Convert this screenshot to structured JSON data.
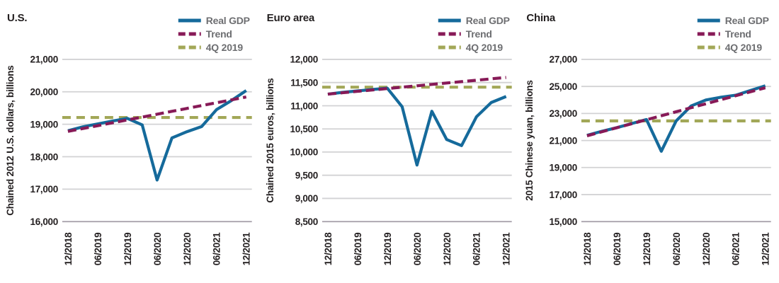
{
  "colors": {
    "real_gdp": "#156a9b",
    "trend": "#871a57",
    "q4_2019": "#a2a757",
    "legend_text": "#6d6e71",
    "title_text": "#231f20",
    "axis_text": "#231f20",
    "gridline": "#d2d2d4",
    "baseline": "#a49ea8",
    "background": "#ffffff"
  },
  "legend": {
    "items": [
      {
        "label": "Real GDP",
        "series_key": "real_gdp",
        "line_style": "solid"
      },
      {
        "label": "Trend",
        "series_key": "trend",
        "line_style": "dashed"
      },
      {
        "label": "4Q 2019",
        "series_key": "q4_2019",
        "line_style": "dashed"
      }
    ],
    "position": "top-right"
  },
  "chart_data": [
    {
      "type": "line",
      "title": "U.S.",
      "ylabel": "Chained 2012 U.S. dollars, billions",
      "x": [
        "12/2018",
        "03/2019",
        "06/2019",
        "09/2019",
        "12/2019",
        "03/2020",
        "06/2020",
        "09/2020",
        "12/2020",
        "03/2021",
        "06/2021",
        "09/2021",
        "12/2021"
      ],
      "x_tick_labels": [
        "12/2018",
        "06/2019",
        "12/2019",
        "06/2020",
        "12/2020",
        "06/2021",
        "12/2021"
      ],
      "y_ticks": [
        21000,
        20000,
        19000,
        18000,
        17000,
        16000
      ],
      "ylim": [
        16000,
        21000
      ],
      "grid": true,
      "series": [
        {
          "name": "Real GDP",
          "values": [
            18800,
            18920,
            19010,
            19100,
            19180,
            18980,
            17280,
            18580,
            18770,
            18930,
            19450,
            19730,
            20040
          ]
        },
        {
          "name": "Trend",
          "values": [
            18780,
            18868,
            18957,
            19045,
            19133,
            19222,
            19310,
            19398,
            19487,
            19575,
            19663,
            19752,
            19840
          ]
        },
        {
          "name": "4Q 2019",
          "values": [
            19210,
            19210,
            19210,
            19210,
            19210,
            19210,
            19210,
            19210,
            19210,
            19210,
            19210,
            19210,
            19210
          ]
        }
      ]
    },
    {
      "type": "line",
      "title": "Euro area",
      "ylabel": "Chained 2015 euros, billions",
      "x": [
        "12/2018",
        "03/2019",
        "06/2019",
        "09/2019",
        "12/2019",
        "03/2020",
        "06/2020",
        "09/2020",
        "12/2020",
        "03/2021",
        "06/2021",
        "09/2021",
        "12/2021"
      ],
      "x_tick_labels": [
        "12/2018",
        "06/2019",
        "12/2019",
        "06/2020",
        "12/2020",
        "06/2021",
        "12/2021"
      ],
      "y_ticks": [
        12000,
        11500,
        11000,
        10500,
        10000,
        9500,
        9000,
        8500
      ],
      "ylim": [
        8500,
        12000
      ],
      "grid": true,
      "series": [
        {
          "name": "Real GDP",
          "values": [
            11250,
            11290,
            11320,
            11350,
            11380,
            10980,
            9720,
            10880,
            10270,
            10140,
            10760,
            11070,
            11200
          ]
        },
        {
          "name": "Trend",
          "values": [
            11250,
            11280,
            11310,
            11340,
            11370,
            11400,
            11430,
            11460,
            11490,
            11520,
            11550,
            11580,
            11610
          ]
        },
        {
          "name": "4Q 2019",
          "values": [
            11400,
            11400,
            11400,
            11400,
            11400,
            11400,
            11400,
            11400,
            11400,
            11400,
            11400,
            11400,
            11400
          ]
        }
      ]
    },
    {
      "type": "line",
      "title": "China",
      "ylabel": "2015 Chinese yuan, billions",
      "x": [
        "12/2018",
        "03/2019",
        "06/2019",
        "09/2019",
        "12/2019",
        "03/2020",
        "06/2020",
        "09/2020",
        "12/2020",
        "03/2021",
        "06/2021",
        "09/2021",
        "12/2021"
      ],
      "x_tick_labels": [
        "12/2018",
        "06/2019",
        "12/2019",
        "06/2020",
        "12/2020",
        "06/2021",
        "12/2021"
      ],
      "y_ticks": [
        27000,
        25000,
        23000,
        21000,
        19000,
        17000,
        15000
      ],
      "ylim": [
        15000,
        27000
      ],
      "grid": true,
      "series": [
        {
          "name": "Real GDP",
          "values": [
            21380,
            21680,
            21950,
            22250,
            22550,
            20200,
            22450,
            23550,
            24000,
            24200,
            24350,
            24700,
            25050
          ]
        },
        {
          "name": "Trend",
          "values": [
            21350,
            21646,
            21942,
            22238,
            22533,
            22829,
            23125,
            23421,
            23717,
            24013,
            24308,
            24604,
            24900
          ]
        },
        {
          "name": "4Q 2019",
          "values": [
            22450,
            22450,
            22450,
            22450,
            22450,
            22450,
            22450,
            22450,
            22450,
            22450,
            22450,
            22450,
            22450
          ]
        }
      ]
    }
  ]
}
